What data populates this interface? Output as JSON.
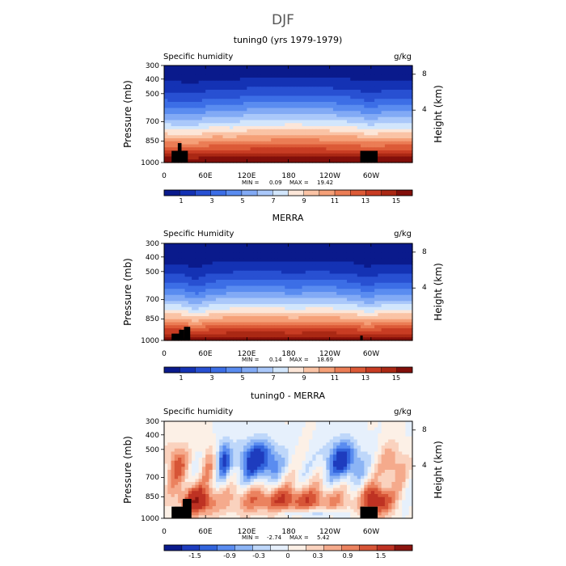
{
  "figure_title": "DJF",
  "chart_data": [
    {
      "type": "heatmap",
      "title": "tuning0 (yrs 1979-1979)",
      "left_label": "Specific humidity",
      "right_label": "g/kg",
      "ylabel": "Pressure (mb)",
      "y2label": "Height (km)",
      "x_ticks": [
        "0",
        "60E",
        "120E",
        "180",
        "120W",
        "60W"
      ],
      "y_ticks": [
        "300",
        "400",
        "500",
        "700",
        "850",
        "1000"
      ],
      "y2_ticks": [
        "8",
        "4"
      ],
      "min_label": "MIN =",
      "min_value": "0.09",
      "max_label": "MAX =",
      "max_value": "19.42",
      "colorbar_ticks": [
        "1",
        "3",
        "5",
        "7",
        "9",
        "11",
        "13",
        "15"
      ],
      "zlim": [
        0,
        16
      ]
    },
    {
      "type": "heatmap",
      "title": "MERRA",
      "left_label": "Specific Humidity",
      "right_label": "g/kg",
      "ylabel": "Pressure (mb)",
      "y2label": "Height (km)",
      "x_ticks": [
        "0",
        "60E",
        "120E",
        "180",
        "120W",
        "60W"
      ],
      "y_ticks": [
        "300",
        "400",
        "500",
        "700",
        "850",
        "1000"
      ],
      "y2_ticks": [
        "8",
        "4"
      ],
      "min_label": "MIN =",
      "min_value": "0.14",
      "max_label": "MAX =",
      "max_value": "18.69",
      "colorbar_ticks": [
        "1",
        "3",
        "5",
        "7",
        "9",
        "11",
        "13",
        "15"
      ],
      "zlim": [
        0,
        16
      ]
    },
    {
      "type": "heatmap",
      "title": "tuning0 - MERRA",
      "left_label": "Specific humidity",
      "right_label": "g/kg",
      "ylabel": "Pressure (mb)",
      "y2label": "Height (km)",
      "x_ticks": [
        "0",
        "60E",
        "120E",
        "180",
        "120W",
        "60W"
      ],
      "y_ticks": [
        "300",
        "400",
        "500",
        "700",
        "850",
        "1000"
      ],
      "y2_ticks": [
        "8",
        "4"
      ],
      "min_label": "MIN =",
      "min_value": "-2.74",
      "max_label": "MAX =",
      "max_value": "5.42",
      "colorbar_ticks": [
        "-1.5",
        "-0.9",
        "-0.3",
        "0",
        "0.3",
        "0.9",
        "1.5"
      ],
      "zlim": [
        -2,
        2
      ]
    }
  ],
  "colors": {
    "seq": [
      "#0a1a8c",
      "#1432b4",
      "#2850d2",
      "#3c6ee6",
      "#5a8cf0",
      "#82aaf5",
      "#aac8fa",
      "#d2e6fc",
      "#fce6d8",
      "#fac3a5",
      "#f5a078",
      "#eb7d55",
      "#dc5a37",
      "#c83c23",
      "#aa2814",
      "#820f0a"
    ],
    "div": [
      "#0a1a8c",
      "#1e3cbe",
      "#3264dc",
      "#5a8cf0",
      "#8cb4f5",
      "#bed7fa",
      "#e6f0fc",
      "#fcf0e6",
      "#fad2be",
      "#f5aa8c",
      "#eb825f",
      "#d75537",
      "#be3223",
      "#8c140f"
    ],
    "terrain": "#000000"
  }
}
